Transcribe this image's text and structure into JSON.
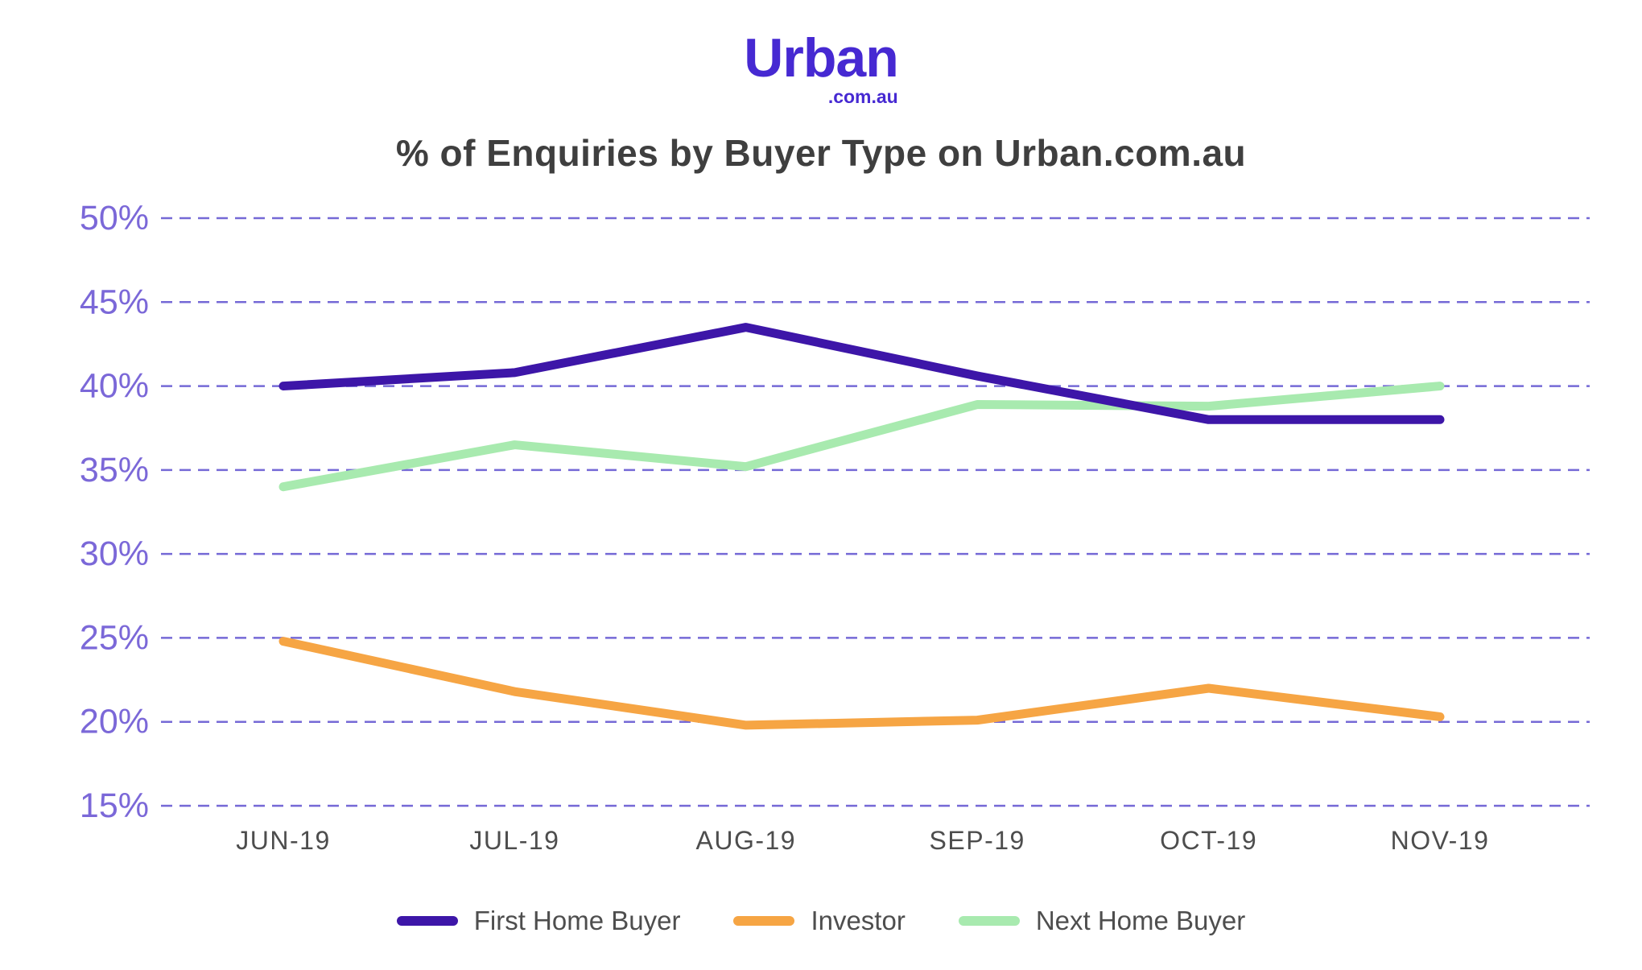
{
  "brand": {
    "logo_text": "Urban",
    "logo_subtext": ".com.au",
    "logo_color": "#4629d2"
  },
  "title": "% of Enquiries by Buyer Type on Urban.com.au",
  "chart_data": {
    "type": "line",
    "title": "% of Enquiries by Buyer Type on Urban.com.au",
    "categories": [
      "JUN-19",
      "JUL-19",
      "AUG-19",
      "SEP-19",
      "OCT-19",
      "NOV-19"
    ],
    "series": [
      {
        "name": "First Home Buyer",
        "color": "#3d16a8",
        "values": [
          40.0,
          40.8,
          43.5,
          40.6,
          38.0,
          38.0
        ]
      },
      {
        "name": "Investor",
        "color": "#f6a544",
        "values": [
          24.8,
          21.8,
          19.8,
          20.1,
          22.0,
          20.3
        ]
      },
      {
        "name": "Next Home Buyer",
        "color": "#a8eaaf",
        "values": [
          34.0,
          36.5,
          35.2,
          38.9,
          38.8,
          40.0
        ]
      }
    ],
    "ylim": [
      15,
      50
    ],
    "ytick_step": 5,
    "yticks": [
      "15%",
      "20%",
      "25%",
      "30%",
      "35%",
      "40%",
      "45%",
      "50%"
    ],
    "grid": "dashed-horizontal",
    "gridline_color": "#7569d6",
    "axis_label_color": "#7b68d8",
    "x_label_color": "#4d4d4d",
    "legend_position": "bottom"
  }
}
